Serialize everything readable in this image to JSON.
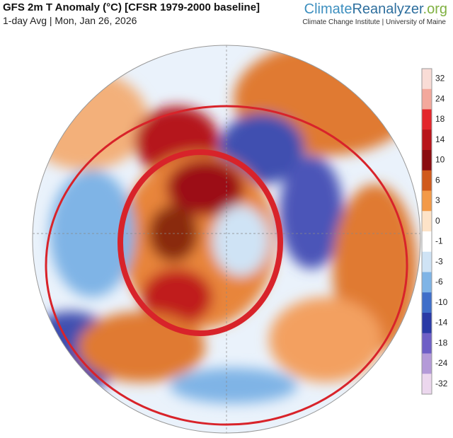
{
  "header": {
    "title": "GFS 2m T Anomaly (°C) [CFSR 1979-2000 baseline]",
    "subtitle": "1-day Avg | Mon, Jan 26, 2026"
  },
  "brand": {
    "name_a": "Climate",
    "name_b": "Reanalyzer",
    "name_c": ".org",
    "tagline": "Climate Change Institute | University of Maine"
  },
  "legend": {
    "ticks": [
      32,
      24,
      18,
      14,
      10,
      6,
      3,
      0,
      -1,
      -3,
      -6,
      -10,
      -14,
      -18,
      -24,
      -32
    ],
    "colors": [
      "#f9dcd6",
      "#f3a89c",
      "#e3262c",
      "#b8141a",
      "#8a0c10",
      "#d05a1c",
      "#f39a48",
      "#fde3c8",
      "#ffffff",
      "#cfe3f5",
      "#7fb4e6",
      "#3f6ec9",
      "#2a3aa6",
      "#6e5fc6",
      "#b49ad8",
      "#ecd7ee"
    ]
  }
}
